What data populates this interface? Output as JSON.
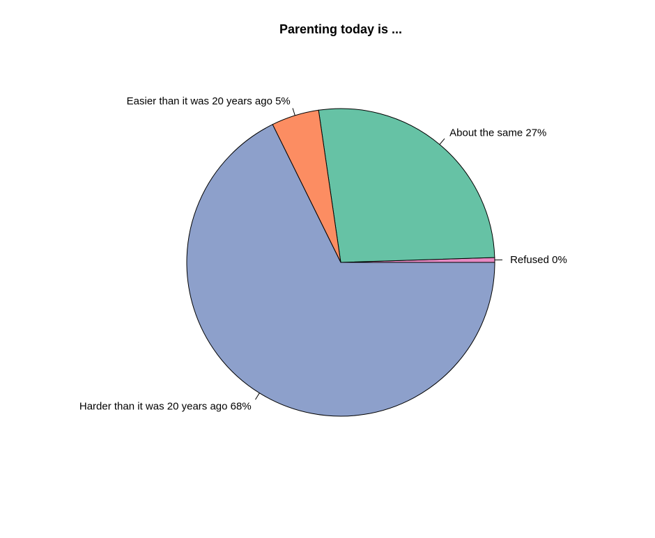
{
  "chart_data": {
    "type": "pie",
    "title": "Parenting today is ...",
    "direction": "counterclockwise",
    "start": "3 o'clock",
    "slices": [
      {
        "category": "Refused",
        "value": 0.5,
        "label": "Refused 0%",
        "color": "#E78AC3"
      },
      {
        "category": "About the same",
        "value": 26.8,
        "label": "About the same 27%",
        "color": "#66C2A5"
      },
      {
        "category": "Easier than it was 20 years ago",
        "value": 5.0,
        "label": "Easier than it was 20 years ago 5%",
        "color": "#FC8D62"
      },
      {
        "category": "Harder than it was 20 years ago",
        "value": 67.7,
        "label": "Harder than it was 20 years ago 68%",
        "color": "#8DA0CB"
      }
    ]
  }
}
